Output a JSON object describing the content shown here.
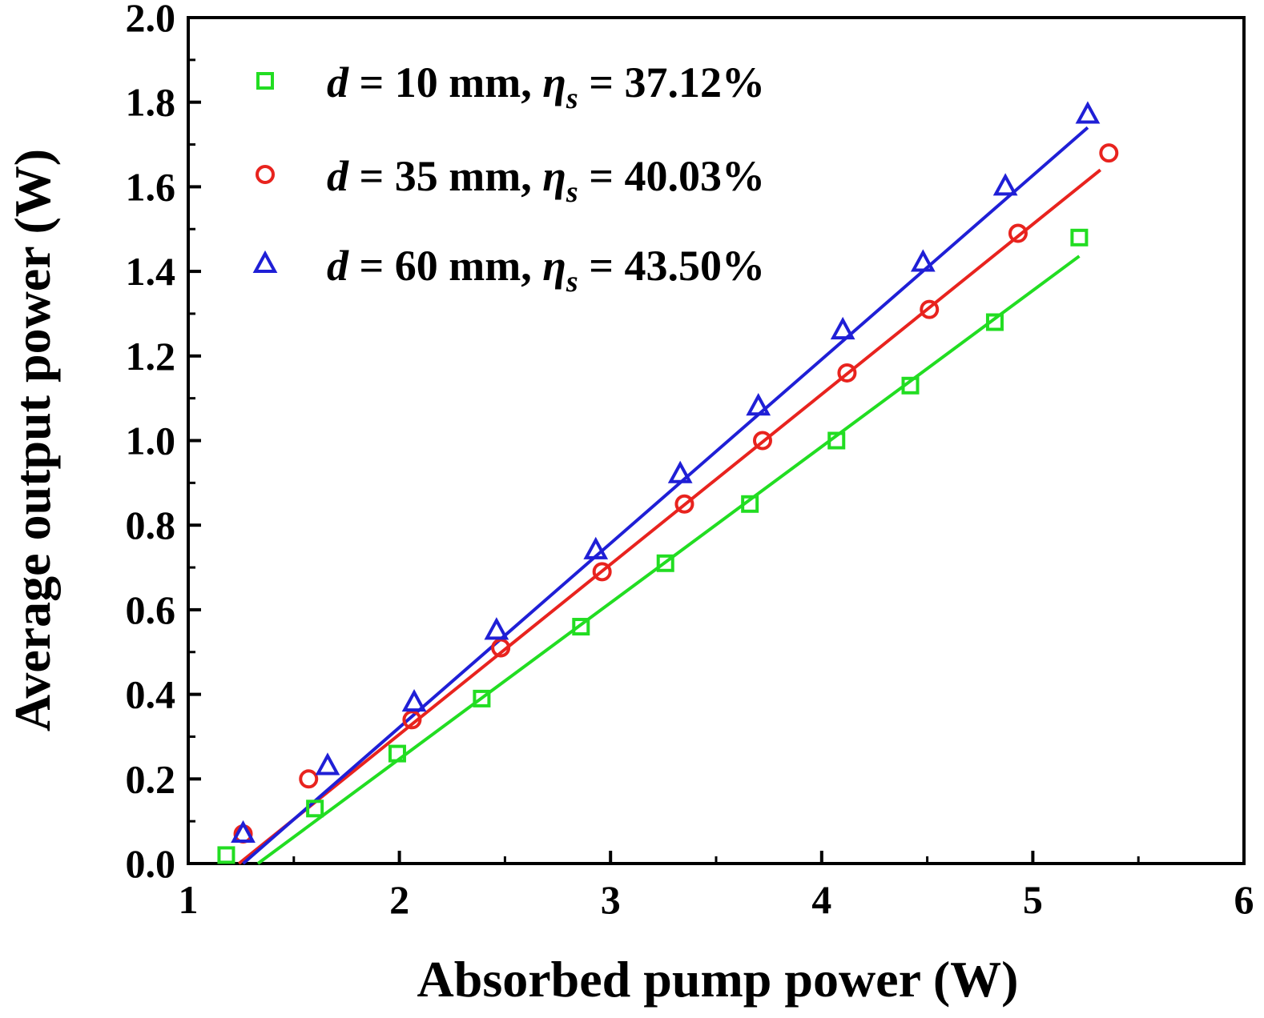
{
  "chart_data": {
    "type": "scatter",
    "title": "",
    "xlabel": "Absorbed pump power (W)",
    "ylabel": "Average output power (W)",
    "xlim": [
      1,
      6
    ],
    "ylim": [
      0.0,
      2.0
    ],
    "xticks": [
      "1",
      "2",
      "3",
      "4",
      "5",
      "6"
    ],
    "yticks": [
      "0.0",
      "0.2",
      "0.4",
      "0.6",
      "0.8",
      "1.0",
      "1.2",
      "1.4",
      "1.6",
      "1.8",
      "2.0"
    ],
    "legend_position": "top-left",
    "series": [
      {
        "name": "d = 10 mm, ηs = 37.12%",
        "legend": {
          "var": "d",
          "rest": " = 10 mm, ",
          "eta": "η",
          "sub": "s",
          "value": " = 37.12%"
        },
        "marker": "square",
        "color": "#22dd22",
        "x": [
          1.18,
          1.6,
          1.99,
          2.39,
          2.86,
          3.26,
          3.66,
          4.07,
          4.42,
          4.82,
          5.22
        ],
        "y": [
          0.02,
          0.13,
          0.26,
          0.39,
          0.56,
          0.71,
          0.85,
          1.0,
          1.13,
          1.28,
          1.48
        ],
        "fit": {
          "x": [
            1.33,
            5.22
          ],
          "y": [
            0.0,
            1.436
          ]
        }
      },
      {
        "name": "d = 35 mm, ηs = 40.03%",
        "legend": {
          "var": "d",
          "rest": " = 35 mm, ",
          "eta": "η",
          "sub": "s",
          "value": " = 40.03%"
        },
        "marker": "circle",
        "color": "#e8231e",
        "x": [
          1.26,
          1.57,
          2.06,
          2.48,
          2.96,
          3.35,
          3.72,
          4.12,
          4.51,
          4.93,
          5.36
        ],
        "y": [
          0.07,
          0.2,
          0.34,
          0.51,
          0.69,
          0.85,
          1.0,
          1.16,
          1.31,
          1.49,
          1.68
        ],
        "fit": {
          "x": [
            1.24,
            5.32
          ],
          "y": [
            0.0,
            1.64
          ]
        }
      },
      {
        "name": "d = 60 mm, ηs = 43.50%",
        "legend": {
          "var": "d",
          "rest": " = 60 mm, ",
          "eta": "η",
          "sub": "s",
          "value": " = 43.50%"
        },
        "marker": "triangle",
        "color": "#1f1fd6",
        "x": [
          1.26,
          1.66,
          2.07,
          2.46,
          2.93,
          3.33,
          3.7,
          4.1,
          4.48,
          4.87,
          5.26
        ],
        "y": [
          0.07,
          0.23,
          0.38,
          0.55,
          0.74,
          0.92,
          1.08,
          1.26,
          1.42,
          1.6,
          1.77
        ],
        "fit": {
          "x": [
            1.26,
            5.26
          ],
          "y": [
            0.0,
            1.74
          ]
        }
      }
    ]
  }
}
